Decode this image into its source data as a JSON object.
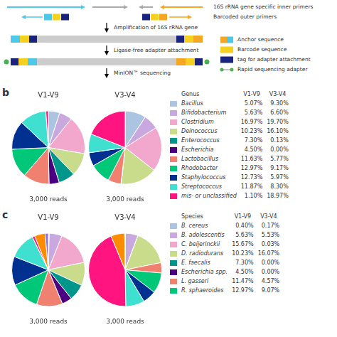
{
  "chart_data": [
    {
      "type": "diagram",
      "annotations": [
        "16S rRNA gene specific inner primers",
        "Barcoded outer primers",
        "Amplification of 16S rRNA gene",
        "Ligase-free adapter attachment",
        "MinION™ sequencing"
      ],
      "series": [
        {
          "name": "Anchor sequence",
          "colors": [
            "#f5a623",
            "#4dc8e8"
          ]
        },
        {
          "name": "Barcode sequence",
          "color": "#f5d020"
        },
        {
          "name": "tag for adapter attachment",
          "color": "#1a237e"
        },
        {
          "name": "Rapid sequencing adapter",
          "color": "#4caf50"
        }
      ]
    },
    {
      "type": "pie",
      "title": "b",
      "subtitle": "3,000 reads",
      "annotations": [
        "Genus"
      ],
      "categories": [
        "Bacillus",
        "Bifidobacterium",
        "Clostridium",
        "Deinococcus",
        "Enterococcus",
        "Escherichia",
        "Lactobacillus",
        "Rhodobacter",
        "Staphylococcus",
        "Streptococcus",
        "mis- or unclassified"
      ],
      "colors": [
        "#aac4e2",
        "#c9a8e0",
        "#f2a8cc",
        "#c8dc8c",
        "#00968c",
        "#4b0082",
        "#f08070",
        "#00c878",
        "#003090",
        "#40e0d0",
        "#ff1480"
      ],
      "series": [
        {
          "name": "V1-V9",
          "values": [
            5.07,
            5.63,
            16.97,
            10.23,
            7.3,
            4.5,
            11.63,
            12.97,
            12.73,
            11.87,
            1.1
          ],
          "value_labels": [
            "5.07%",
            "5.63%",
            "16.97%",
            "10.23%",
            "7.30%",
            "4.50%",
            "11.63%",
            "12.97%",
            "12.73%",
            "11.87%",
            "1.10%"
          ]
        },
        {
          "name": "V3-V4",
          "values": [
            9.3,
            6.6,
            19.7,
            16.1,
            0.13,
            0.0,
            5.77,
            9.17,
            5.97,
            8.3,
            18.97
          ],
          "value_labels": [
            "9.30%",
            "6.60%",
            "19.70%",
            "16.10%",
            "0.13%",
            "0.00%",
            "5.77%",
            "9.17%",
            "5.97%",
            "8.30%",
            "18.97%"
          ]
        }
      ]
    },
    {
      "type": "pie",
      "title": "c",
      "subtitle": "3,000 reads",
      "annotations": [
        "Species"
      ],
      "categories": [
        "B. cereus",
        "B. adolescentis",
        "C. beijerinckii",
        "D. radiodurans",
        "E. faecalis",
        "Escherichia spp.",
        "L. gasseri",
        "R. sphaeroides",
        null,
        null,
        null,
        null,
        null
      ],
      "colors": [
        "#aac4e2",
        "#c9a8e0",
        "#f2a8cc",
        "#c8dc8c",
        "#00968c",
        "#4b0082",
        "#f08070",
        "#00c878",
        "#003090",
        "#40e0d0",
        "#ff1480",
        "#ff8c00",
        "#9370db"
      ],
      "series": [
        {
          "name": "V1-V9",
          "values": [
            0.4,
            5.63,
            15.67,
            10.23,
            7.3,
            4.5,
            11.47,
            12.97,
            12.73,
            11.87,
            1.1,
            4.67,
            1.43
          ],
          "value_labels": [
            "0.40%",
            "5.63%",
            "15.67%",
            "10.23%",
            "7.30%",
            "4.50%",
            "11.47%",
            "12.97%",
            null,
            null,
            null,
            null,
            null
          ]
        },
        {
          "name": "V3-V4",
          "values": [
            0.17,
            5.53,
            0.03,
            16.07,
            0.0,
            0.0,
            4.57,
            9.07,
            5.97,
            8.3,
            43.97,
            6.1,
            0.2
          ],
          "value_labels": [
            "0.17%",
            "5.53%",
            "0.03%",
            "16.07%",
            "0.00%",
            "0.00%",
            "4.57%",
            "9.07%",
            null,
            null,
            null,
            null,
            null
          ]
        }
      ]
    }
  ]
}
